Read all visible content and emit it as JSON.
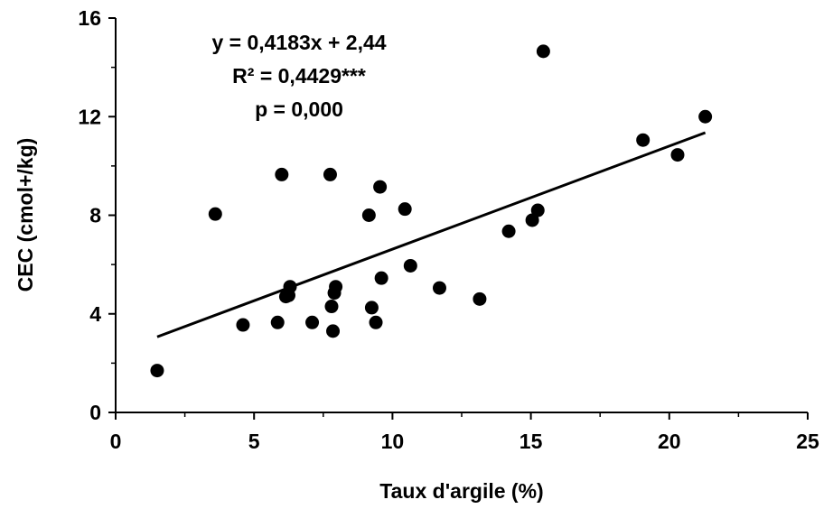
{
  "chart_data": {
    "type": "scatter",
    "title": "",
    "xlabel": "Taux d'argile (%)",
    "ylabel": "CEC (cmol+/kg)",
    "xlim": [
      0,
      25
    ],
    "ylim": [
      0,
      16
    ],
    "xticks": [
      0,
      5,
      10,
      15,
      20,
      25
    ],
    "yticks": [
      0,
      4,
      8,
      12,
      16
    ],
    "grid": false,
    "marker_color": "#000000",
    "annotations": {
      "equation": "y = 0,4183x + 2,44",
      "r2": "R² = 0,4429***",
      "p": "p = 0,000"
    },
    "trendline": {
      "slope": 0.4183,
      "intercept": 2.44,
      "x_range": [
        1.5,
        21.3
      ]
    },
    "points": [
      {
        "x": 1.5,
        "y": 1.7
      },
      {
        "x": 3.6,
        "y": 8.05
      },
      {
        "x": 4.6,
        "y": 3.55
      },
      {
        "x": 5.85,
        "y": 3.65
      },
      {
        "x": 6.0,
        "y": 9.65
      },
      {
        "x": 6.15,
        "y": 4.7
      },
      {
        "x": 6.25,
        "y": 4.75
      },
      {
        "x": 6.3,
        "y": 5.1
      },
      {
        "x": 7.1,
        "y": 3.65
      },
      {
        "x": 7.75,
        "y": 9.65
      },
      {
        "x": 7.8,
        "y": 4.3
      },
      {
        "x": 7.85,
        "y": 3.3
      },
      {
        "x": 7.9,
        "y": 4.85
      },
      {
        "x": 7.95,
        "y": 5.1
      },
      {
        "x": 9.15,
        "y": 8.0
      },
      {
        "x": 9.25,
        "y": 4.25
      },
      {
        "x": 9.4,
        "y": 3.65
      },
      {
        "x": 9.55,
        "y": 9.15
      },
      {
        "x": 9.6,
        "y": 5.45
      },
      {
        "x": 10.45,
        "y": 8.25
      },
      {
        "x": 10.65,
        "y": 5.95
      },
      {
        "x": 11.7,
        "y": 5.05
      },
      {
        "x": 13.15,
        "y": 4.6
      },
      {
        "x": 14.2,
        "y": 7.35
      },
      {
        "x": 15.05,
        "y": 7.8
      },
      {
        "x": 15.25,
        "y": 8.2
      },
      {
        "x": 15.45,
        "y": 14.65
      },
      {
        "x": 19.05,
        "y": 11.05
      },
      {
        "x": 20.3,
        "y": 10.45
      },
      {
        "x": 21.3,
        "y": 12.0
      }
    ]
  }
}
